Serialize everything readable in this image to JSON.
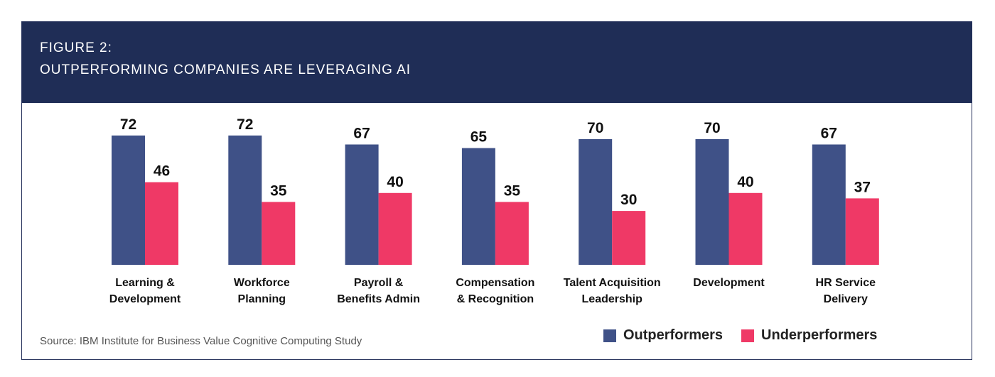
{
  "header": {
    "line1": "FIGURE 2:",
    "line2": "OUTPERFORMING COMPANIES ARE LEVERAGING AI"
  },
  "source": "Source: IBM Institute for Business Value Cognitive Computing Study",
  "legend": {
    "outperformers": "Outperformers",
    "underperformers": "Underperformers"
  },
  "colors": {
    "header_bg": "#1f2d56",
    "outperformers": "#3f5187",
    "underperformers": "#ef3966"
  },
  "chart_data": {
    "type": "bar",
    "title": "OUTPERFORMING COMPANIES ARE LEVERAGING AI",
    "categories": [
      [
        "Learning &",
        "Development"
      ],
      [
        "Workforce",
        "Planning"
      ],
      [
        "Payroll &",
        "Benefits Admin"
      ],
      [
        "Compensation",
        "& Recognition"
      ],
      [
        "Talent Acquisition",
        "Leadership"
      ],
      [
        "Development"
      ],
      [
        "HR Service",
        "Delivery"
      ]
    ],
    "series": [
      {
        "name": "Outperformers",
        "values": [
          72,
          72,
          67,
          65,
          70,
          70,
          67
        ]
      },
      {
        "name": "Underperformers",
        "values": [
          46,
          35,
          40,
          35,
          30,
          40,
          37
        ]
      }
    ],
    "ylim": [
      0,
      100
    ],
    "grid": false,
    "legend_position": "bottom-right"
  }
}
